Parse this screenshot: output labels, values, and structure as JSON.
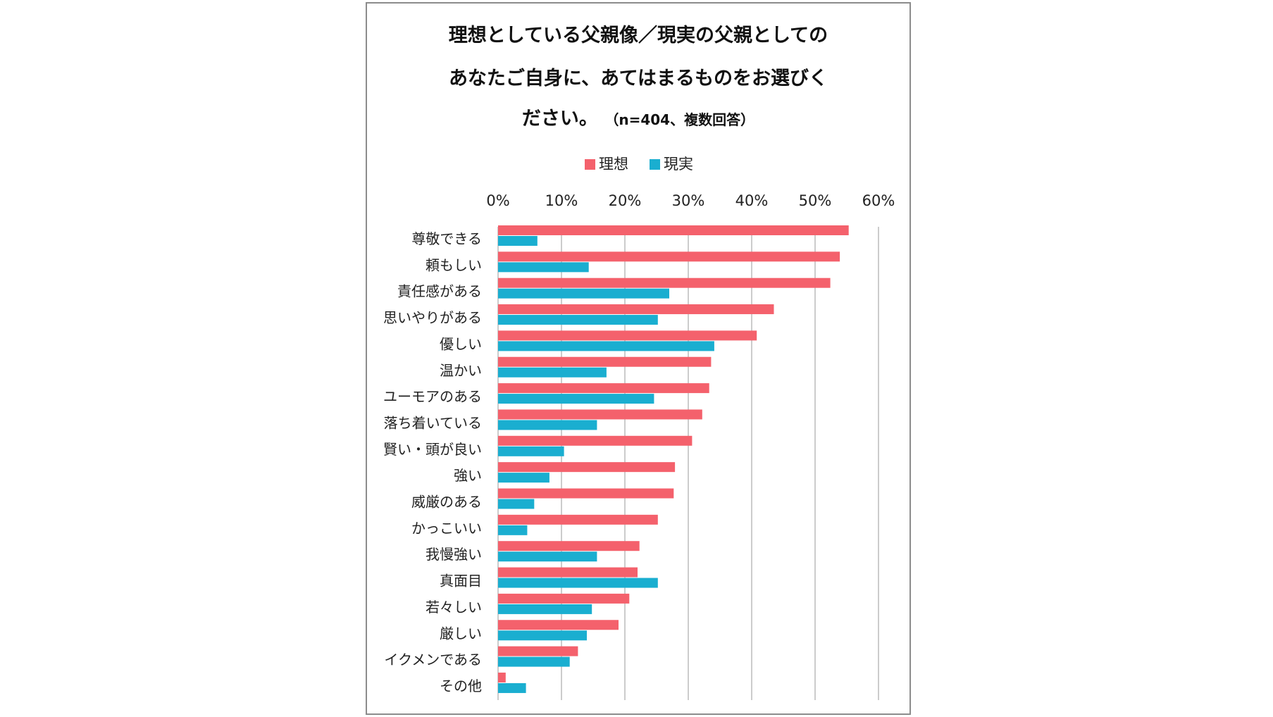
{
  "chart_data": {
    "type": "bar",
    "orientation": "horizontal",
    "title_lines": [
      "理想としている父親像／現実の父親としての",
      "あなたご自身に、あてはまるものをお選びく",
      "ださい。"
    ],
    "subtitle": "（n=404、複数回答）",
    "legend_position": "top",
    "xlim": [
      0,
      60
    ],
    "x_ticks": [
      "0%",
      "10%",
      "20%",
      "30%",
      "40%",
      "50%",
      "60%"
    ],
    "x_tick_values": [
      0,
      10,
      20,
      30,
      40,
      50,
      60
    ],
    "grid": true,
    "categories": [
      "尊敬できる",
      "頼もしい",
      "責任感がある",
      "思いやりがある",
      "優しい",
      "温かい",
      "ユーモアのある",
      "落ち着いている",
      "賢い・頭が良い",
      "強い",
      "威厳のある",
      "かっこいい",
      "我慢強い",
      "真面目",
      "若々しい",
      "厳しい",
      "イクメンである",
      "その他"
    ],
    "series": [
      {
        "name": "理想",
        "color": "#f4616c",
        "values": [
          55.3,
          53.9,
          52.4,
          43.5,
          40.8,
          33.6,
          33.3,
          32.2,
          30.6,
          27.9,
          27.7,
          25.2,
          22.3,
          22.0,
          20.7,
          19.0,
          12.6,
          1.2
        ]
      },
      {
        "name": "現実",
        "color": "#1aaed0",
        "values": [
          6.2,
          14.3,
          27.0,
          25.2,
          34.1,
          17.1,
          24.6,
          15.6,
          10.4,
          8.1,
          5.7,
          4.6,
          15.6,
          25.2,
          14.8,
          14.0,
          11.3,
          4.4
        ]
      }
    ]
  }
}
